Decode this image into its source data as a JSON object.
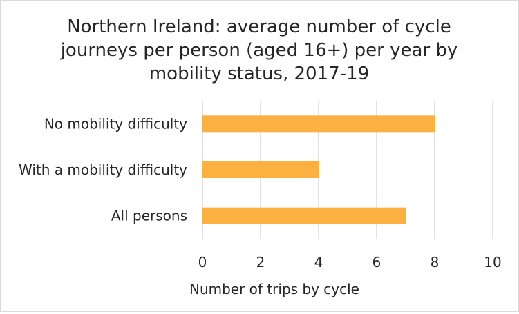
{
  "chart_data": {
    "type": "bar",
    "orientation": "horizontal",
    "title": "Northern Ireland: average number of cycle journeys per person (aged 16+) per year by mobility status, 2017-19",
    "title_lines": [
      "Northern Ireland: average number of cycle",
      "journeys per person (aged 16+) per year by",
      "mobility status, 2017-19"
    ],
    "categories": [
      "No mobility difficulty",
      "With a mobility difficulty",
      "All persons"
    ],
    "values": [
      8,
      4,
      7
    ],
    "xlabel": "Number of trips by cycle",
    "ylabel": "",
    "xlim": [
      0,
      10
    ],
    "xticks": [
      "0",
      "2",
      "4",
      "6",
      "8",
      "10"
    ],
    "grid": true,
    "legend": "none",
    "bar_color": "#FBB040",
    "grid_color": "#d9d9d9"
  }
}
